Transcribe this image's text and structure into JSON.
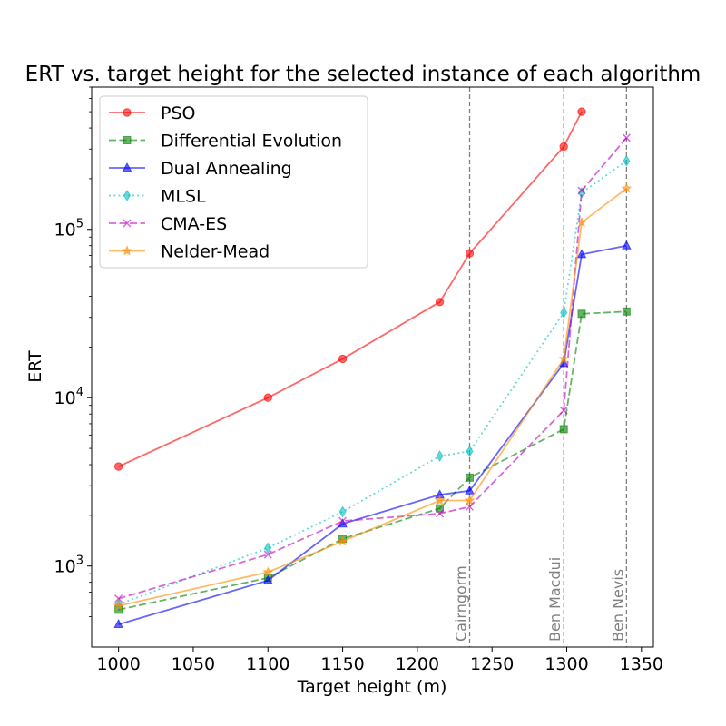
{
  "chart_data": {
    "type": "line",
    "title": "ERT vs. target height for the selected instance of each algorithm",
    "xlabel": "Target height (m)",
    "ylabel": "ERT",
    "yscale": "log",
    "xlim": [
      982,
      1358
    ],
    "ylim": [
      330,
      700000
    ],
    "xticks": [
      1000,
      1050,
      1100,
      1150,
      1200,
      1250,
      1300,
      1350
    ],
    "xtick_labels": [
      "1000",
      "1050",
      "1100",
      "1150",
      "1200",
      "1250",
      "1300",
      "1350"
    ],
    "yticks": [
      1000,
      10000,
      100000
    ],
    "ytick_labels": [
      {
        "base": "10",
        "exp": "3"
      },
      {
        "base": "10",
        "exp": "4"
      },
      {
        "base": "10",
        "exp": "5"
      }
    ],
    "grid": false,
    "legend_position": "upper-left",
    "series": [
      {
        "name": "PSO",
        "color": "#ff0000",
        "linestyle": "solid",
        "marker": "circle",
        "x": [
          1000,
          1100,
          1150,
          1215,
          1235,
          1298,
          1310
        ],
        "y": [
          3900,
          10000,
          17000,
          37000,
          72000,
          310000,
          500000
        ]
      },
      {
        "name": "Differential Evolution",
        "color": "#008000",
        "linestyle": "dashed",
        "marker": "square",
        "x": [
          1000,
          1100,
          1150,
          1215,
          1235,
          1298,
          1310,
          1340
        ],
        "y": [
          550,
          850,
          1450,
          2200,
          3350,
          6500,
          31500,
          32500
        ]
      },
      {
        "name": "Dual Annealing",
        "color": "#0000ff",
        "linestyle": "solid",
        "marker": "triangle",
        "x": [
          1000,
          1100,
          1150,
          1215,
          1235,
          1298,
          1310,
          1340
        ],
        "y": [
          450,
          820,
          1780,
          2650,
          2800,
          16000,
          71000,
          80000
        ]
      },
      {
        "name": "MLSL",
        "color": "#00bfbf",
        "linestyle": "dotted",
        "marker": "diamond",
        "x": [
          1000,
          1100,
          1150,
          1215,
          1235,
          1298,
          1310,
          1340
        ],
        "y": [
          590,
          1280,
          2100,
          4500,
          4800,
          32000,
          165000,
          255000
        ]
      },
      {
        "name": "CMA-ES",
        "color": "#bf00bf",
        "linestyle": "dashed",
        "marker": "x",
        "x": [
          1000,
          1100,
          1150,
          1215,
          1235,
          1298,
          1310,
          1340
        ],
        "y": [
          640,
          1170,
          1850,
          2050,
          2250,
          8400,
          170000,
          350000
        ]
      },
      {
        "name": "Nelder-Mead",
        "color": "#ff8c00",
        "linestyle": "solid",
        "marker": "star",
        "x": [
          1000,
          1100,
          1150,
          1215,
          1235,
          1298,
          1310,
          1340
        ],
        "y": [
          580,
          920,
          1400,
          2450,
          2450,
          17000,
          110000,
          175000
        ]
      }
    ],
    "annotations": [
      {
        "label": "Cairngorm",
        "x": 1235
      },
      {
        "label": "Ben Macdui",
        "x": 1298
      },
      {
        "label": "Ben Nevis",
        "x": 1340
      }
    ]
  }
}
